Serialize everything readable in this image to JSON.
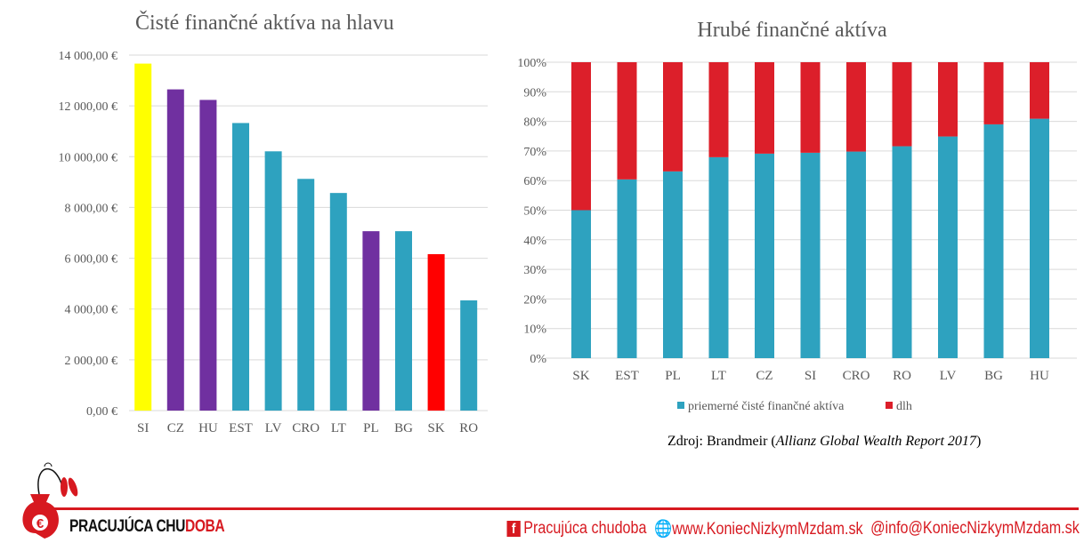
{
  "chart_data": [
    {
      "type": "bar",
      "title": "Čisté finančné aktíva na hlavu",
      "categories": [
        "SI",
        "CZ",
        "HU",
        "EST",
        "LV",
        "CRO",
        "LT",
        "PL",
        "BG",
        "SK",
        "RO"
      ],
      "values": [
        13665,
        12650,
        12235,
        11325,
        10210,
        9125,
        8570,
        7065,
        7065,
        6160,
        4340
      ],
      "colors": [
        "#ffff00",
        "#7030a0",
        "#7030a0",
        "#2ea2bf",
        "#2ea2bf",
        "#2ea2bf",
        "#2ea2bf",
        "#7030a0",
        "#2ea2bf",
        "#ff0000",
        "#2ea2bf"
      ],
      "ylim": [
        0,
        14000
      ],
      "yticks": [
        "0,00 €",
        "2 000,00 €",
        "4 000,00 €",
        "6 000,00 €",
        "8 000,00 €",
        "10 000,00 €",
        "12 000,00 €",
        "14 000,00 €"
      ],
      "grid": true
    },
    {
      "type": "bar",
      "stacked": "percent",
      "title": "Hrubé finančné aktíva",
      "categories": [
        "SK",
        "EST",
        "PL",
        "LT",
        "CZ",
        "SI",
        "CRO",
        "RO",
        "LV",
        "BG",
        "HU"
      ],
      "series": [
        {
          "name": "priemerné čisté finančné aktíva",
          "color": "#2ea2bf",
          "values": [
            50,
            60.4,
            63.1,
            67.9,
            69.1,
            69.4,
            69.8,
            71.6,
            74.9,
            79.0,
            80.9
          ]
        },
        {
          "name": "dlh",
          "color": "#dc1f2a",
          "values": [
            50,
            39.6,
            36.9,
            32.1,
            30.9,
            30.6,
            30.2,
            28.4,
            25.1,
            21.0,
            19.1
          ]
        }
      ],
      "ylim": [
        0,
        100
      ],
      "yticks": [
        "0%",
        "10%",
        "20%",
        "30%",
        "40%",
        "50%",
        "60%",
        "70%",
        "80%",
        "90%",
        "100%"
      ],
      "legend": "bottom",
      "grid": true
    }
  ],
  "source": {
    "prefix": "Zdroj: Brandmeir (",
    "italic": "Allianz Global Wealth Report 2017",
    "suffix": ")"
  },
  "footer": {
    "brand_a": "PRACUJÚCA CHU",
    "brand_b": "DOBA",
    "facebook": "Pracujúca chudoba",
    "web": "www.KoniecNizkymMzdam.sk",
    "email": "info@KoniecNizkymMzdam.sk"
  }
}
